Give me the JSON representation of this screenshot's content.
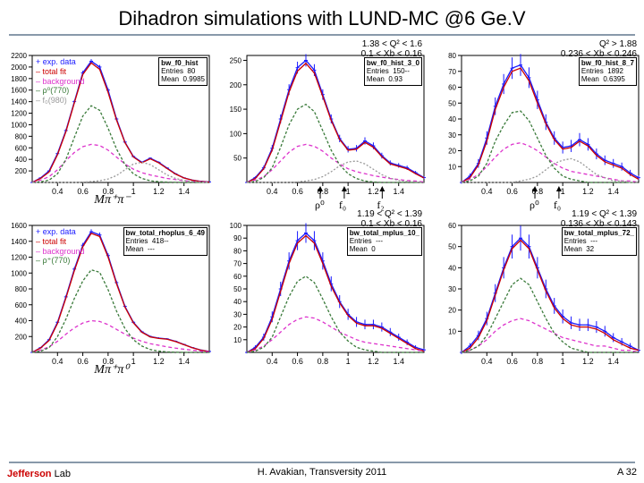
{
  "title": "Dihadron simulations with LUND-MC @6 Ge.V",
  "footer_center": "H. Avakian, Transversity 2011",
  "footer_right": "A 32",
  "jlab_logo": {
    "text1": "Jefferson",
    "text2": "Lab"
  },
  "colors": {
    "exp": "#1a1aff",
    "total": "#cc0000",
    "bkg": "#dd33cc",
    "rho": "#3a7a3a",
    "f0": "#999999",
    "axis": "#000000",
    "grid_border": "#000000"
  },
  "panels": [
    {
      "ix": 0,
      "iy": 0,
      "stat": {
        "title": "bw_f0_hist",
        "entries": "80",
        "mean": "0.9985"
      },
      "legend": [
        "+ exp. data",
        "– total fit",
        "– background",
        "– ρ⁰(770)",
        "– f₀(980)"
      ],
      "legend_colors": [
        "#1a1aff",
        "#cc0000",
        "#dd33cc",
        "#3a7a3a",
        "#999999"
      ],
      "xlabel": "Mπ⁺π⁻",
      "xmin": 0.2,
      "xmax": 1.6,
      "xticks": [
        0.4,
        0.6,
        0.8,
        1,
        1.2,
        1.4
      ],
      "ymax": 2200,
      "yticks": [
        200,
        400,
        600,
        800,
        1000,
        1200,
        1400,
        1600,
        1800,
        2000,
        2200
      ],
      "curves": {
        "exp": [
          0,
          80,
          200,
          500,
          900,
          1400,
          1900,
          2100,
          2000,
          1600,
          1100,
          700,
          450,
          350,
          420,
          350,
          250,
          150,
          80,
          40,
          20,
          10
        ],
        "total": [
          0,
          70,
          180,
          480,
          880,
          1380,
          1870,
          2070,
          1960,
          1560,
          1080,
          690,
          440,
          340,
          410,
          340,
          240,
          145,
          78,
          38,
          18,
          8
        ],
        "bkg": [
          0,
          40,
          100,
          220,
          380,
          520,
          620,
          660,
          640,
          560,
          440,
          320,
          230,
          170,
          130,
          100,
          70,
          50,
          30,
          18,
          10,
          5
        ],
        "rho": [
          0,
          10,
          40,
          150,
          400,
          780,
          1150,
          1330,
          1250,
          940,
          580,
          310,
          150,
          70,
          30,
          12,
          5,
          2,
          0,
          0,
          0,
          0
        ],
        "f0": [
          0,
          0,
          0,
          0,
          0,
          0,
          5,
          15,
          30,
          60,
          120,
          220,
          320,
          350,
          310,
          220,
          130,
          70,
          35,
          15,
          6,
          2
        ]
      }
    },
    {
      "ix": 1,
      "iy": 0,
      "kin": "1.38 < Q² < 1.6\n0.1 < Xb < 0.16",
      "stat": {
        "title": "bw_f0_hist_3_0",
        "entries": "150--",
        "mean": "0.93"
      },
      "annotations": [
        "ρ⁰",
        "f₀",
        "f₂"
      ],
      "xmin": 0.2,
      "xmax": 1.6,
      "xticks": [
        0.4,
        0.6,
        0.8,
        1,
        1.2,
        1.4
      ],
      "ymax": 260,
      "yticks": [
        50,
        100,
        150,
        200,
        250
      ],
      "curves": {
        "exp": [
          0,
          10,
          30,
          70,
          130,
          190,
          235,
          250,
          230,
          180,
          130,
          90,
          68,
          70,
          85,
          75,
          55,
          40,
          35,
          30,
          20,
          10
        ],
        "total": [
          0,
          8,
          28,
          66,
          125,
          185,
          228,
          244,
          224,
          176,
          127,
          88,
          66,
          68,
          82,
          72,
          53,
          38,
          33,
          28,
          18,
          9
        ],
        "bkg": [
          0,
          5,
          12,
          26,
          44,
          62,
          74,
          78,
          74,
          64,
          50,
          38,
          28,
          22,
          18,
          14,
          11,
          8,
          6,
          4,
          3,
          1
        ],
        "rho": [
          0,
          2,
          10,
          30,
          72,
          118,
          150,
          160,
          145,
          106,
          66,
          36,
          18,
          8,
          3,
          1,
          0,
          0,
          0,
          0,
          0,
          0
        ],
        "f0": [
          0,
          0,
          0,
          0,
          0,
          0,
          1,
          3,
          6,
          12,
          22,
          34,
          42,
          44,
          38,
          27,
          16,
          9,
          4,
          2,
          1,
          0
        ]
      }
    },
    {
      "ix": 2,
      "iy": 0,
      "kin": "Q² > 1.88\n0.236 < Xb < 0.246",
      "stat": {
        "title": "bw_f0_hist_8_7",
        "entries": "1892",
        "mean": "0.6395"
      },
      "annotations": [
        "ρ⁰",
        "f₀"
      ],
      "xmin": 0.2,
      "xmax": 1.6,
      "xticks": [
        0.4,
        0.6,
        0.8,
        1,
        1.2,
        1.4
      ],
      "ymax": 80,
      "yticks": [
        10,
        20,
        30,
        40,
        50,
        60,
        70,
        80
      ],
      "curves": {
        "exp": [
          0,
          4,
          12,
          28,
          48,
          62,
          72,
          74,
          66,
          52,
          38,
          28,
          22,
          23,
          27,
          24,
          18,
          14,
          12,
          10,
          6,
          3
        ],
        "total": [
          0,
          3,
          11,
          26,
          46,
          60,
          70,
          72,
          64,
          50,
          37,
          27,
          21,
          22,
          26,
          23,
          17,
          13,
          11,
          9,
          5,
          2
        ],
        "bkg": [
          0,
          2,
          5,
          10,
          16,
          21,
          24,
          25,
          23,
          20,
          16,
          12,
          9,
          7,
          6,
          5,
          4,
          3,
          2,
          1,
          1,
          0
        ],
        "rho": [
          0,
          1,
          4,
          12,
          26,
          36,
          44,
          45,
          39,
          28,
          17,
          9,
          4,
          2,
          1,
          0,
          0,
          0,
          0,
          0,
          0,
          0
        ],
        "f0": [
          0,
          0,
          0,
          0,
          0,
          0,
          0,
          1,
          2,
          4,
          8,
          12,
          14,
          15,
          13,
          9,
          5,
          3,
          1,
          1,
          0,
          0
        ]
      }
    },
    {
      "ix": 0,
      "iy": 1,
      "stat": {
        "title": "bw_total_rhoplus_6_49",
        "entries": "418--",
        "mean": "---"
      },
      "legend": [
        "+ exp. data",
        "– total fit",
        "– background",
        "– ρ⁺(770)"
      ],
      "legend_colors": [
        "#1a1aff",
        "#cc0000",
        "#dd33cc",
        "#3a7a3a"
      ],
      "xlabel": "Mπ⁺π⁰",
      "xmin": 0.2,
      "xmax": 1.6,
      "xticks": [
        0.4,
        0.6,
        0.8,
        1,
        1.2,
        1.4
      ],
      "ymax": 1600,
      "yticks": [
        200,
        400,
        600,
        800,
        1000,
        1200,
        1400,
        1600
      ],
      "curves": {
        "exp": [
          0,
          60,
          160,
          380,
          700,
          1050,
          1350,
          1520,
          1480,
          1220,
          880,
          580,
          380,
          260,
          200,
          180,
          170,
          140,
          100,
          60,
          30,
          12
        ],
        "total": [
          0,
          55,
          150,
          365,
          685,
          1030,
          1330,
          1500,
          1460,
          1200,
          865,
          570,
          372,
          254,
          195,
          176,
          166,
          136,
          97,
          58,
          28,
          11
        ],
        "bkg": [
          0,
          30,
          70,
          140,
          230,
          310,
          370,
          400,
          390,
          350,
          290,
          230,
          180,
          140,
          110,
          90,
          70,
          54,
          40,
          28,
          16,
          8
        ],
        "rho": [
          0,
          15,
          60,
          200,
          420,
          680,
          900,
          1040,
          1010,
          790,
          520,
          300,
          160,
          80,
          36,
          16,
          6,
          2,
          0,
          0,
          0,
          0
        ]
      }
    },
    {
      "ix": 1,
      "iy": 1,
      "kin": "1.19 < Q² < 1.39\n0.1 < Xb < 0.16",
      "stat": {
        "title": "bw_total_mplus_10_",
        "entries": "---",
        "mean": "0"
      },
      "xmin": 0.2,
      "xmax": 1.6,
      "xticks": [
        0.4,
        0.6,
        0.8,
        1,
        1.2,
        1.4
      ],
      "ymax": 100,
      "yticks": [
        10,
        20,
        30,
        40,
        50,
        60,
        70,
        80,
        90,
        100
      ],
      "curves": {
        "exp": [
          0,
          4,
          12,
          28,
          50,
          72,
          88,
          94,
          88,
          72,
          54,
          40,
          30,
          24,
          22,
          22,
          20,
          16,
          12,
          8,
          4,
          2
        ],
        "total": [
          0,
          3,
          11,
          26,
          48,
          70,
          86,
          92,
          86,
          70,
          52,
          39,
          29,
          23,
          21,
          21,
          19,
          15,
          11,
          7,
          3,
          1
        ],
        "bkg": [
          0,
          2,
          5,
          10,
          16,
          22,
          26,
          28,
          27,
          24,
          20,
          16,
          13,
          10,
          8,
          7,
          6,
          5,
          4,
          3,
          2,
          1
        ],
        "rho": [
          0,
          1,
          4,
          12,
          28,
          44,
          56,
          60,
          55,
          42,
          28,
          16,
          9,
          4,
          2,
          1,
          0,
          0,
          0,
          0,
          0,
          0
        ]
      }
    },
    {
      "ix": 2,
      "iy": 1,
      "kin": "1.19 < Q² < 1.39\n0.136 < Xb < 0.143",
      "stat": {
        "title": "bw_total_mplus_72_",
        "entries": "---",
        "mean": "32"
      },
      "xmin": 0.2,
      "xmax": 1.6,
      "xticks": [
        0.4,
        0.6,
        0.8,
        1,
        1.2,
        1.4
      ],
      "ymax": 60,
      "yticks": [
        10,
        20,
        30,
        40,
        50,
        60
      ],
      "curves": {
        "exp": [
          0,
          3,
          8,
          16,
          28,
          40,
          50,
          54,
          50,
          40,
          30,
          22,
          17,
          14,
          13,
          13,
          12,
          10,
          7,
          5,
          3,
          1
        ],
        "total": [
          0,
          2,
          7,
          15,
          27,
          39,
          49,
          53,
          49,
          39,
          29,
          21,
          16,
          13,
          12,
          12,
          11,
          9,
          6,
          4,
          2,
          1
        ],
        "bkg": [
          0,
          1,
          3,
          6,
          10,
          13,
          15,
          16,
          15,
          13,
          11,
          9,
          7,
          6,
          5,
          4,
          3,
          3,
          2,
          1,
          1,
          0
        ],
        "rho": [
          0,
          1,
          3,
          8,
          16,
          24,
          32,
          35,
          32,
          24,
          16,
          9,
          5,
          2,
          1,
          0,
          0,
          0,
          0,
          0,
          0,
          0
        ]
      }
    }
  ]
}
